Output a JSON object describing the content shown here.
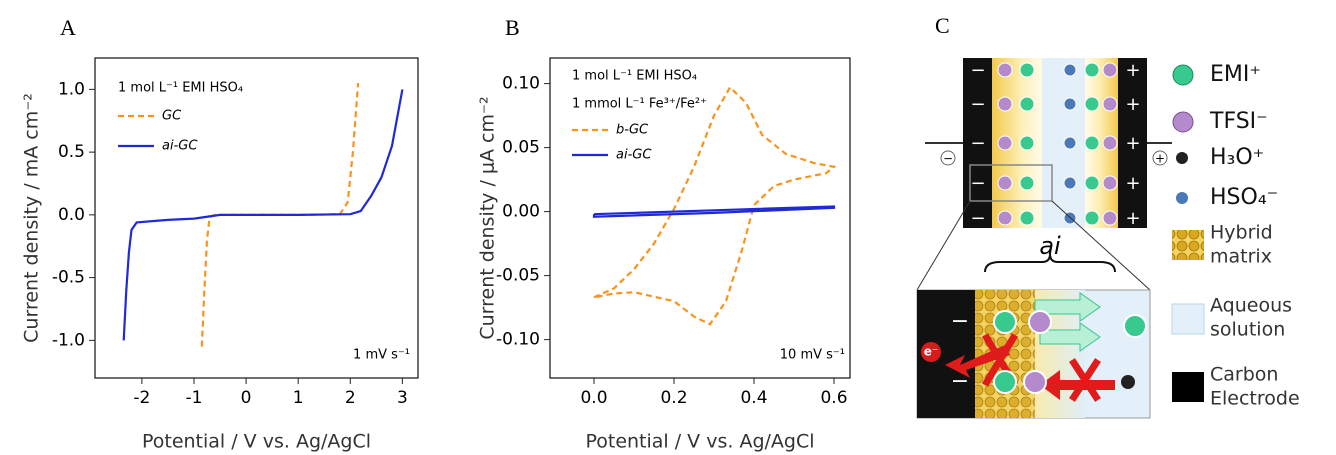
{
  "chart_data": [
    {
      "type": "line",
      "panel": "A",
      "ylabel": "Current density / mA cm⁻²",
      "xlabel": "Potential / V vs. Ag/AgCl",
      "conditions": [
        "1 mol L⁻¹ EMI HSO₄"
      ],
      "scan_rate": "1 mV s⁻¹",
      "xlim": [
        -2.9,
        3.3
      ],
      "xticks": [
        -2,
        -1,
        0,
        1,
        2,
        3
      ],
      "ylim": [
        -1.3,
        1.25
      ],
      "yticks": [
        {
          "value": -1,
          "label": "-1.0"
        },
        -0.5,
        {
          "value": 0,
          "label": "0.0"
        },
        0.5,
        {
          "value": 1,
          "label": "1.0"
        }
      ],
      "series": [
        {
          "name": "GC",
          "color": "#f7931e",
          "linestyle": "dashed",
          "x": [
            -0.85,
            -0.8,
            -0.75,
            -0.7,
            -0.6,
            0,
            1,
            1.8,
            1.95,
            2.05,
            2.15
          ],
          "values": [
            -1.05,
            -0.6,
            -0.2,
            -0.02,
            0,
            0,
            0,
            0.005,
            0.1,
            0.5,
            1.05
          ]
        },
        {
          "name": "ai-GC",
          "color": "#1f2ad6",
          "linestyle": "solid",
          "x": [
            -2.35,
            -2.3,
            -2.25,
            -2.2,
            -2.1,
            -1.5,
            -1,
            -0.5,
            0,
            1,
            2,
            2.2,
            2.4,
            2.6,
            2.8,
            3.0
          ],
          "values": [
            -1.0,
            -0.6,
            -0.3,
            -0.12,
            -0.06,
            -0.04,
            -0.03,
            0,
            0,
            0,
            0.005,
            0.03,
            0.15,
            0.3,
            0.55,
            1.0
          ]
        }
      ]
    },
    {
      "type": "line",
      "panel": "B",
      "ylabel": "Current density / μA cm⁻²",
      "xlabel": "Potential / V vs. Ag/AgCl",
      "conditions": [
        "1 mol L⁻¹ EMI HSO₄",
        "1 mmol L⁻¹ Fe³⁺/Fe²⁺"
      ],
      "scan_rate": "10 mV s⁻¹",
      "xlim": [
        -0.11,
        0.64
      ],
      "xticks": [
        {
          "value": 0,
          "label": "0.0"
        },
        0.2,
        0.4,
        0.6
      ],
      "ylim": [
        -0.13,
        0.12
      ],
      "yticks": [
        {
          "value": -0.1,
          "label": "-0.10"
        },
        -0.05,
        {
          "value": 0,
          "label": "0.00"
        },
        0.05,
        {
          "value": 0.1,
          "label": "0.10"
        }
      ],
      "series": [
        {
          "name": "b-GC",
          "color": "#f7931e",
          "linestyle": "dashed",
          "x": [
            0,
            0.05,
            0.1,
            0.15,
            0.2,
            0.25,
            0.3,
            0.34,
            0.38,
            0.42,
            0.48,
            0.55,
            0.6,
            0.58,
            0.5,
            0.45,
            0.4,
            0.37,
            0.33,
            0.29,
            0.25,
            0.2,
            0.1,
            0.05,
            0
          ],
          "values": [
            -0.067,
            -0.06,
            -0.045,
            -0.025,
            0.002,
            0.035,
            0.075,
            0.097,
            0.085,
            0.06,
            0.045,
            0.038,
            0.035,
            0.03,
            0.025,
            0.02,
            0.005,
            -0.03,
            -0.07,
            -0.088,
            -0.082,
            -0.07,
            -0.063,
            -0.064,
            -0.067
          ]
        },
        {
          "name": "ai-GC",
          "color": "#1f2ad6",
          "linestyle": "solid",
          "x": [
            0,
            0.3,
            0.6,
            0.6,
            0.3,
            0,
            0
          ],
          "values": [
            -0.002,
            0.001,
            0.004,
            0.003,
            -0.001,
            -0.004,
            -0.002
          ]
        }
      ]
    }
  ],
  "diagram": {
    "panel": "C",
    "region": "ai",
    "electron": "e⁻",
    "legend": [
      [
        "EMI⁺"
      ],
      [
        "TFSI⁻"
      ],
      [
        "H₃O⁺"
      ],
      [
        "HSO₄⁻"
      ],
      [
        "Hybrid",
        "matrix"
      ],
      [
        "Aqueous",
        "solution"
      ],
      [
        "Carbon",
        "Electrode"
      ]
    ]
  }
}
